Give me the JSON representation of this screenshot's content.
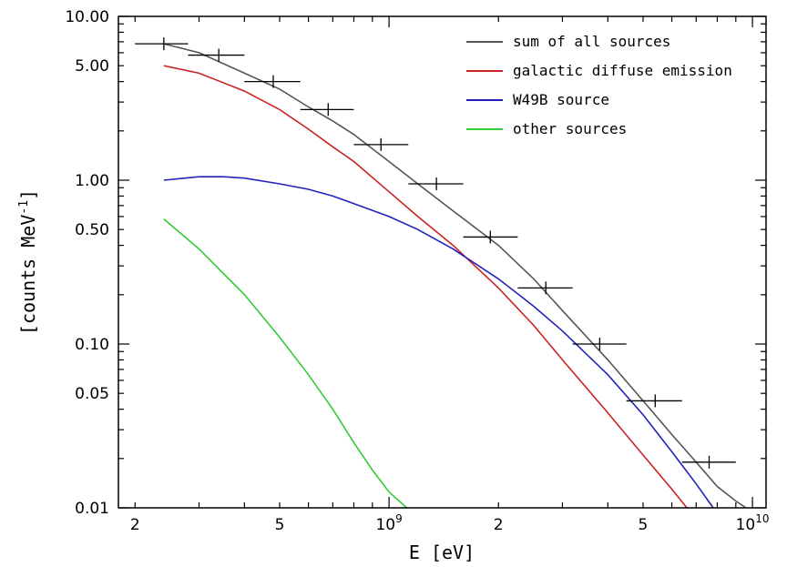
{
  "chart_data": {
    "type": "line",
    "title": "",
    "xlabel": "E [eV]",
    "ylabel": "[counts MeV",
    "ylabel_sup": "-1",
    "ylabel_close": "]",
    "x_scale": "log",
    "y_scale": "log",
    "xlim": [
      180000000.0,
      10900000000.0
    ],
    "ylim": [
      0.01,
      10
    ],
    "x_ticks": [
      {
        "value": 200000000.0,
        "label": "2"
      },
      {
        "value": 500000000.0,
        "label": "5"
      },
      {
        "value": 1000000000.0,
        "label": "10",
        "sup": "9"
      },
      {
        "value": 2000000000.0,
        "label": "2"
      },
      {
        "value": 5000000000.0,
        "label": "5"
      },
      {
        "value": 10000000000.0,
        "label": "10",
        "sup": "10"
      }
    ],
    "y_ticks": [
      {
        "value": 10,
        "label": "10.00"
      },
      {
        "value": 5,
        "label": "5.00"
      },
      {
        "value": 1,
        "label": "1.00"
      },
      {
        "value": 0.5,
        "label": "0.50"
      },
      {
        "value": 0.1,
        "label": "0.10"
      },
      {
        "value": 0.05,
        "label": "0.05"
      },
      {
        "value": 0.01,
        "label": "0.01"
      }
    ],
    "grid": false,
    "legend_position": "top-right",
    "series": [
      {
        "name": "sum of all sources",
        "color": "#555555",
        "x": [
          240000000.0,
          300000000.0,
          400000000.0,
          500000000.0,
          600000000.0,
          700000000.0,
          800000000.0,
          1000000000.0,
          1200000000.0,
          1500000000.0,
          2000000000.0,
          2500000000.0,
          3000000000.0,
          4000000000.0,
          5000000000.0,
          6000000000.0,
          7000000000.0,
          8000000000.0,
          9000000000.0,
          9600000000.0
        ],
        "y": [
          6.8,
          6.0,
          4.5,
          3.6,
          2.8,
          2.3,
          1.9,
          1.3,
          0.95,
          0.65,
          0.4,
          0.25,
          0.16,
          0.08,
          0.045,
          0.028,
          0.019,
          0.0135,
          0.011,
          0.01
        ]
      },
      {
        "name": "galactic diffuse emission",
        "color": "#cc2222",
        "x": [
          240000000.0,
          300000000.0,
          400000000.0,
          500000000.0,
          600000000.0,
          700000000.0,
          800000000.0,
          1000000000.0,
          1200000000.0,
          1500000000.0,
          2000000000.0,
          2500000000.0,
          3000000000.0,
          4000000000.0,
          5000000000.0,
          6000000000.0,
          6600000000.0
        ],
        "y": [
          5.0,
          4.5,
          3.5,
          2.7,
          2.05,
          1.6,
          1.3,
          0.85,
          0.6,
          0.4,
          0.22,
          0.13,
          0.08,
          0.038,
          0.021,
          0.013,
          0.01
        ]
      },
      {
        "name": "W49B source",
        "color": "#2222bb",
        "x": [
          240000000.0,
          300000000.0,
          350000000.0,
          400000000.0,
          500000000.0,
          600000000.0,
          700000000.0,
          800000000.0,
          1000000000.0,
          1200000000.0,
          1500000000.0,
          2000000000.0,
          2500000000.0,
          3000000000.0,
          4000000000.0,
          5000000000.0,
          6000000000.0,
          7000000000.0,
          7800000000.0
        ],
        "y": [
          1.0,
          1.05,
          1.05,
          1.03,
          0.95,
          0.88,
          0.8,
          0.72,
          0.6,
          0.5,
          0.38,
          0.25,
          0.17,
          0.12,
          0.065,
          0.037,
          0.022,
          0.014,
          0.01
        ]
      },
      {
        "name": "other sources",
        "color": "#33cc33",
        "x": [
          240000000.0,
          300000000.0,
          400000000.0,
          500000000.0,
          600000000.0,
          700000000.0,
          800000000.0,
          900000000.0,
          1000000000.0,
          1120000000.0
        ],
        "y": [
          0.58,
          0.38,
          0.2,
          0.11,
          0.065,
          0.04,
          0.025,
          0.017,
          0.0125,
          0.01
        ]
      }
    ],
    "data_points": {
      "name": "",
      "color": "#000000",
      "points": [
        {
          "x": 240000000.0,
          "y": 6.8,
          "xlo": 200000000.0,
          "xhi": 280000000.0
        },
        {
          "x": 340000000.0,
          "y": 5.8,
          "xlo": 280000000.0,
          "xhi": 400000000.0
        },
        {
          "x": 480000000.0,
          "y": 4.0,
          "xlo": 400000000.0,
          "xhi": 570000000.0
        },
        {
          "x": 680000000.0,
          "y": 2.7,
          "xlo": 570000000.0,
          "xhi": 800000000.0
        },
        {
          "x": 950000000.0,
          "y": 1.65,
          "xlo": 800000000.0,
          "xhi": 1130000000.0
        },
        {
          "x": 1350000000.0,
          "y": 0.95,
          "xlo": 1130000000.0,
          "xhi": 1600000000.0
        },
        {
          "x": 1900000000.0,
          "y": 0.45,
          "xlo": 1600000000.0,
          "xhi": 2260000000.0
        },
        {
          "x": 2700000000.0,
          "y": 0.22,
          "xlo": 2260000000.0,
          "xhi": 3200000000.0
        },
        {
          "x": 3800000000.0,
          "y": 0.1,
          "xlo": 3200000000.0,
          "xhi": 4500000000.0
        },
        {
          "x": 5400000000.0,
          "y": 0.045,
          "xlo": 4500000000.0,
          "xhi": 6400000000.0
        },
        {
          "x": 7600000000.0,
          "y": 0.019,
          "xlo": 6400000000.0,
          "xhi": 9000000000.0
        }
      ]
    }
  }
}
